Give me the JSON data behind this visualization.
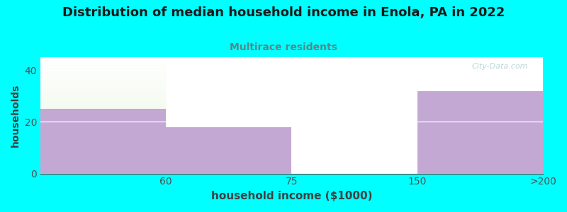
{
  "title": "Distribution of median household income in Enola, PA in 2022",
  "subtitle": "Multirace residents",
  "xlabel": "household income ($1000)",
  "ylabel": "households",
  "categories": [
    "60",
    "75",
    "150",
    ">200"
  ],
  "values": [
    25,
    18,
    0,
    32
  ],
  "bar_color": "#C4A8D4",
  "background_color": "#00FFFF",
  "plot_bg_color_top": "#E8F5E0",
  "plot_bg_color_bottom": "#FFFFFF",
  "ylim": [
    0,
    45
  ],
  "yticks": [
    0,
    20,
    40
  ],
  "title_fontsize": 13,
  "subtitle_fontsize": 10,
  "subtitle_color": "#558888",
  "axis_label_color": "#404040",
  "tick_color": "#505050",
  "watermark": "City-Data.com"
}
